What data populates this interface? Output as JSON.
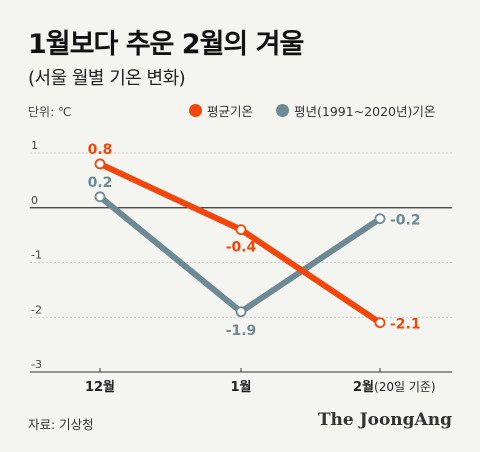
{
  "title": "1월보다 추운 2월의 겨울",
  "subtitle": "(서울 월별 기온 변화)",
  "unit_label": "단위: ℃",
  "source": "자료: 기상청",
  "brand": "The JoongAng",
  "colors": {
    "series_avg": "#f2460a",
    "series_normal": "#6d8a94",
    "background": "#f4f4f1"
  },
  "chart_data": {
    "type": "line",
    "categories": [
      "12월",
      "1월",
      "2월"
    ],
    "category_suffix": [
      "",
      "",
      "(20일 기준)"
    ],
    "series": [
      {
        "name": "평균기온",
        "values": [
          0.8,
          -0.4,
          -2.1
        ],
        "labels": [
          "0.8",
          "-0.4",
          "-2.1"
        ],
        "color": "#f2460a"
      },
      {
        "name": "평년(1991~2020년)기온",
        "values": [
          0.2,
          -1.9,
          -0.2
        ],
        "labels": [
          "0.2",
          "-1.9",
          "-0.2"
        ],
        "color": "#6d8a94"
      }
    ],
    "ylim": [
      -3,
      1
    ],
    "yticks": [
      1,
      0,
      -1,
      -2,
      -3
    ],
    "ytick_labels": [
      "1",
      "0",
      "-1",
      "-2",
      "-3"
    ],
    "grid": true,
    "legend_position": "top-right"
  }
}
